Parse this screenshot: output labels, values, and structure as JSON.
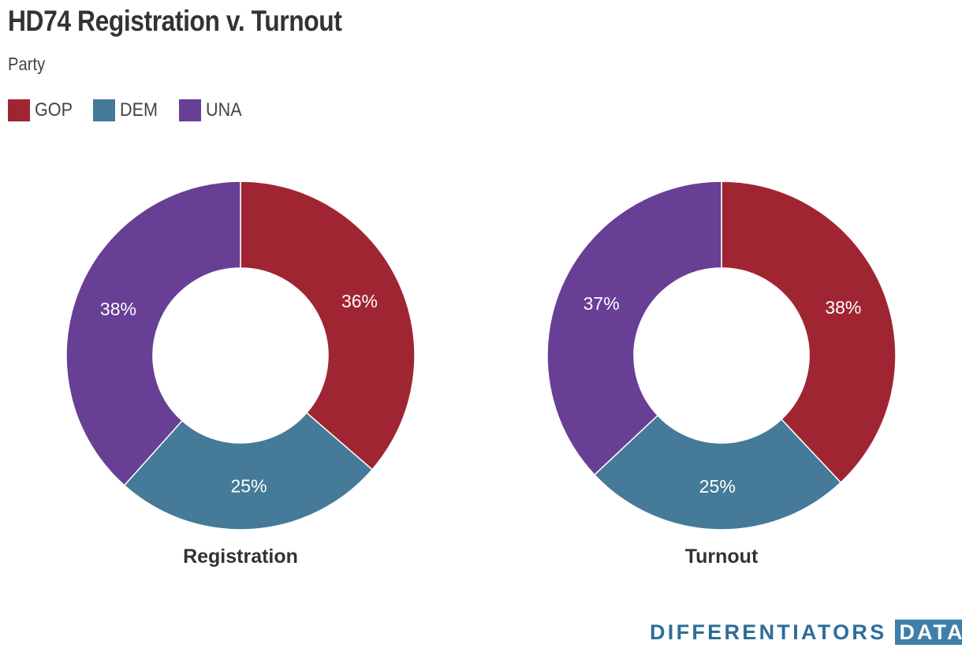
{
  "title": "HD74 Registration v. Turnout",
  "subtitle": "Party",
  "legend": [
    {
      "label": "GOP",
      "color": "#a02532"
    },
    {
      "label": "DEM",
      "color": "#457a98"
    },
    {
      "label": "UNA",
      "color": "#673f95"
    }
  ],
  "chart_data": [
    {
      "type": "pie",
      "title": "Registration",
      "categories": [
        "GOP",
        "DEM",
        "UNA"
      ],
      "values": [
        36,
        25,
        38
      ],
      "colors": [
        "#a02532",
        "#457a98",
        "#673f95"
      ],
      "labels": [
        "36%",
        "25%",
        "38%"
      ],
      "donut": true,
      "legend_position": "top-left"
    },
    {
      "type": "pie",
      "title": "Turnout",
      "categories": [
        "GOP",
        "DEM",
        "UNA"
      ],
      "values": [
        38,
        25,
        37
      ],
      "colors": [
        "#a02532",
        "#457a98",
        "#673f95"
      ],
      "labels": [
        "38%",
        "25%",
        "37%"
      ],
      "donut": true,
      "legend_position": "top-left"
    }
  ],
  "branding": {
    "word": "DIFFERENTIATORS",
    "box": "DATA"
  }
}
